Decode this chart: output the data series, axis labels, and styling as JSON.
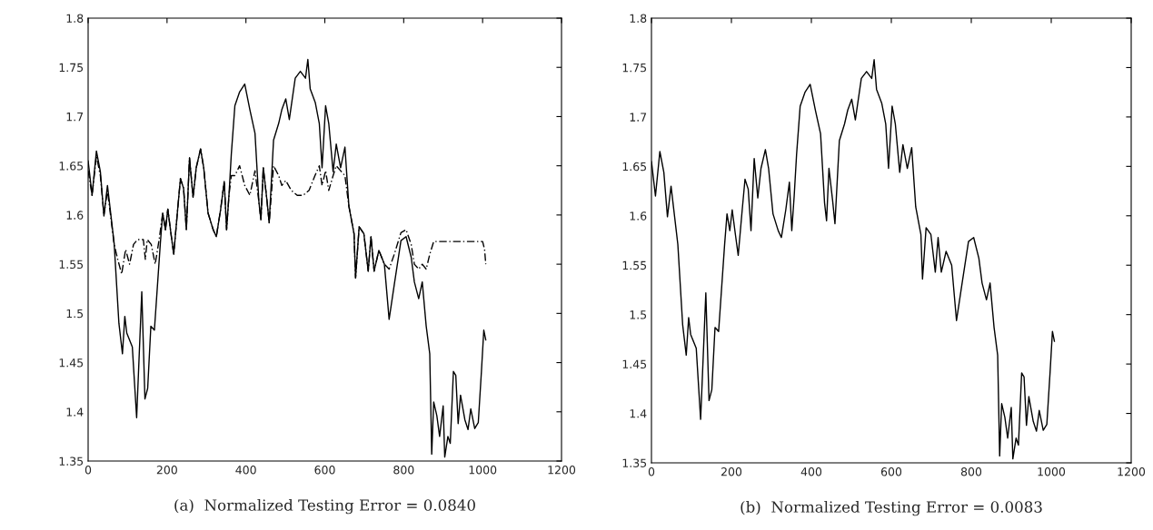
{
  "chart_data": [
    {
      "type": "line",
      "xlabel": "(a)  Normalized Testing Error = 0.0840",
      "xlim": [
        0,
        1200
      ],
      "ylim": [
        1.35,
        1.8
      ],
      "xticks": [
        0,
        200,
        400,
        600,
        800,
        1000,
        1200
      ],
      "yticks": [
        1.35,
        1.4,
        1.45,
        1.5,
        1.55,
        1.6,
        1.65,
        1.7,
        1.75,
        1.8
      ],
      "grid": false,
      "series": [
        {
          "color": "#000000",
          "line_style": "solid",
          "x": [
            0,
            10,
            21,
            31,
            40,
            49,
            66,
            78,
            87,
            93,
            98,
            112,
            123,
            136,
            144,
            151,
            159,
            168,
            183,
            189,
            196,
            202,
            210,
            217,
            227,
            234,
            242,
            249,
            257,
            266,
            274,
            285,
            293,
            304,
            317,
            325,
            336,
            345,
            351,
            357,
            363,
            372,
            384,
            397,
            410,
            423,
            433,
            438,
            444,
            453,
            459,
            470,
            483,
            491,
            501,
            510,
            525,
            538,
            551,
            557,
            563,
            576,
            586,
            593,
            602,
            610,
            621,
            629,
            640,
            651,
            661,
            674,
            678,
            687,
            699,
            710,
            717,
            725,
            737,
            751,
            763,
            776,
            793,
            806,
            819,
            827,
            838,
            847,
            857,
            866,
            871,
            876,
            884,
            891,
            900,
            904,
            912,
            918,
            926,
            932,
            938,
            944,
            955,
            963,
            970,
            980,
            989,
            997,
            1003,
            1008
          ],
          "values": [
            1.655,
            1.62,
            1.665,
            1.644,
            1.599,
            1.63,
            1.571,
            1.49,
            1.459,
            1.497,
            1.48,
            1.466,
            1.394,
            1.522,
            1.413,
            1.424,
            1.487,
            1.483,
            1.571,
            1.602,
            1.585,
            1.606,
            1.581,
            1.56,
            1.606,
            1.637,
            1.627,
            1.585,
            1.658,
            1.618,
            1.648,
            1.667,
            1.648,
            1.602,
            1.585,
            1.578,
            1.606,
            1.634,
            1.585,
            1.62,
            1.662,
            1.711,
            1.725,
            1.733,
            1.707,
            1.683,
            1.613,
            1.595,
            1.648,
            1.616,
            1.592,
            1.676,
            1.693,
            1.707,
            1.718,
            1.697,
            1.739,
            1.746,
            1.739,
            1.758,
            1.728,
            1.714,
            1.693,
            1.648,
            1.711,
            1.693,
            1.644,
            1.672,
            1.648,
            1.669,
            1.609,
            1.581,
            1.536,
            1.588,
            1.581,
            1.543,
            1.578,
            1.543,
            1.564,
            1.55,
            1.494,
            1.529,
            1.574,
            1.578,
            1.557,
            1.532,
            1.515,
            1.532,
            1.487,
            1.459,
            1.357,
            1.41,
            1.396,
            1.375,
            1.406,
            1.354,
            1.375,
            1.368,
            1.441,
            1.437,
            1.388,
            1.417,
            1.392,
            1.382,
            1.403,
            1.383,
            1.389,
            1.441,
            1.483,
            1.473
          ]
        },
        {
          "color": "#000000",
          "line_style": "dashed",
          "x": [
            0,
            10,
            21,
            31,
            40,
            49,
            66,
            75,
            85,
            95,
            105,
            115,
            125,
            140,
            145,
            150,
            160,
            170,
            180,
            189,
            196,
            202,
            210,
            217,
            227,
            234,
            242,
            249,
            257,
            266,
            274,
            285,
            293,
            304,
            317,
            325,
            336,
            345,
            351,
            357,
            363,
            372,
            384,
            397,
            410,
            423,
            433,
            438,
            444,
            453,
            459,
            470,
            483,
            491,
            501,
            515,
            530,
            545,
            560,
            575,
            586,
            593,
            602,
            610,
            621,
            629,
            640,
            651,
            661,
            674,
            678,
            687,
            699,
            710,
            717,
            725,
            737,
            751,
            763,
            776,
            793,
            806,
            819,
            827,
            838,
            847,
            857,
            866,
            876,
            900,
            950,
            1000,
            1005,
            1008
          ],
          "values": [
            1.645,
            1.62,
            1.66,
            1.64,
            1.6,
            1.625,
            1.57,
            1.555,
            1.54,
            1.565,
            1.55,
            1.57,
            1.575,
            1.575,
            1.555,
            1.575,
            1.57,
            1.55,
            1.575,
            1.602,
            1.585,
            1.606,
            1.581,
            1.56,
            1.606,
            1.637,
            1.627,
            1.585,
            1.658,
            1.618,
            1.648,
            1.667,
            1.648,
            1.602,
            1.585,
            1.578,
            1.606,
            1.634,
            1.585,
            1.62,
            1.64,
            1.64,
            1.65,
            1.63,
            1.62,
            1.645,
            1.613,
            1.595,
            1.648,
            1.616,
            1.592,
            1.65,
            1.64,
            1.63,
            1.635,
            1.625,
            1.62,
            1.62,
            1.625,
            1.64,
            1.65,
            1.63,
            1.645,
            1.625,
            1.64,
            1.65,
            1.645,
            1.64,
            1.609,
            1.581,
            1.536,
            1.588,
            1.581,
            1.543,
            1.578,
            1.543,
            1.564,
            1.55,
            1.545,
            1.56,
            1.582,
            1.585,
            1.57,
            1.55,
            1.545,
            1.55,
            1.545,
            1.56,
            1.573,
            1.573,
            1.573,
            1.573,
            1.565,
            1.55
          ]
        }
      ]
    },
    {
      "type": "line",
      "xlabel": "(b)  Normalized Testing Error = 0.0083",
      "xlim": [
        0,
        1200
      ],
      "ylim": [
        1.35,
        1.8
      ],
      "xticks": [
        0,
        200,
        400,
        600,
        800,
        1000,
        1200
      ],
      "yticks": [
        1.35,
        1.4,
        1.45,
        1.5,
        1.55,
        1.6,
        1.65,
        1.7,
        1.75,
        1.8
      ],
      "grid": false,
      "series": [
        {
          "color": "#000000",
          "line_style": "solid",
          "x": [
            0,
            10,
            21,
            31,
            40,
            49,
            66,
            78,
            87,
            93,
            98,
            112,
            123,
            136,
            144,
            151,
            159,
            168,
            183,
            189,
            196,
            202,
            210,
            217,
            227,
            234,
            242,
            249,
            257,
            266,
            274,
            285,
            293,
            304,
            317,
            325,
            336,
            345,
            351,
            357,
            363,
            372,
            384,
            397,
            410,
            423,
            433,
            438,
            444,
            453,
            459,
            470,
            483,
            491,
            501,
            510,
            525,
            538,
            551,
            557,
            563,
            576,
            586,
            593,
            602,
            610,
            621,
            629,
            640,
            651,
            661,
            674,
            678,
            687,
            699,
            710,
            717,
            725,
            737,
            751,
            763,
            776,
            793,
            806,
            819,
            827,
            838,
            847,
            857,
            866,
            871,
            876,
            884,
            891,
            900,
            904,
            912,
            918,
            926,
            932,
            938,
            944,
            955,
            963,
            970,
            980,
            989,
            997,
            1003,
            1008
          ],
          "values": [
            1.655,
            1.62,
            1.665,
            1.644,
            1.599,
            1.63,
            1.571,
            1.49,
            1.459,
            1.497,
            1.48,
            1.466,
            1.394,
            1.522,
            1.413,
            1.424,
            1.487,
            1.483,
            1.571,
            1.602,
            1.585,
            1.606,
            1.581,
            1.56,
            1.606,
            1.637,
            1.627,
            1.585,
            1.658,
            1.618,
            1.648,
            1.667,
            1.648,
            1.602,
            1.585,
            1.578,
            1.606,
            1.634,
            1.585,
            1.62,
            1.662,
            1.711,
            1.725,
            1.733,
            1.707,
            1.683,
            1.613,
            1.595,
            1.648,
            1.616,
            1.592,
            1.676,
            1.693,
            1.707,
            1.718,
            1.697,
            1.739,
            1.746,
            1.739,
            1.758,
            1.728,
            1.714,
            1.693,
            1.648,
            1.711,
            1.693,
            1.644,
            1.672,
            1.648,
            1.669,
            1.609,
            1.581,
            1.536,
            1.588,
            1.581,
            1.543,
            1.578,
            1.543,
            1.564,
            1.55,
            1.494,
            1.529,
            1.574,
            1.578,
            1.557,
            1.532,
            1.515,
            1.532,
            1.487,
            1.459,
            1.357,
            1.41,
            1.396,
            1.375,
            1.406,
            1.354,
            1.375,
            1.368,
            1.441,
            1.437,
            1.388,
            1.417,
            1.392,
            1.382,
            1.403,
            1.383,
            1.389,
            1.441,
            1.483,
            1.473
          ]
        }
      ]
    }
  ]
}
